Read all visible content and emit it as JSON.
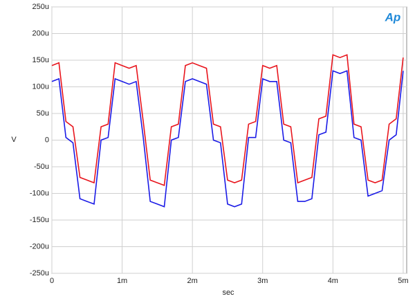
{
  "chart_data": {
    "type": "line",
    "logo": "Ap",
    "xlabel": "sec",
    "ylabel": "V",
    "x": [
      0,
      0.0001,
      0.0002,
      0.0003,
      0.0004,
      0.0005,
      0.0006,
      0.0007,
      0.0008,
      0.0009,
      0.001,
      0.0011,
      0.0012,
      0.0013,
      0.0014,
      0.0015,
      0.0016,
      0.0017,
      0.0018,
      0.0019,
      0.002,
      0.0021,
      0.0022,
      0.0023,
      0.0024,
      0.0025,
      0.0026,
      0.0027,
      0.0028,
      0.0029,
      0.003,
      0.0031,
      0.0032,
      0.0033,
      0.0034,
      0.0035,
      0.0036,
      0.0037,
      0.0038,
      0.0039,
      0.004,
      0.0041,
      0.0042,
      0.0043,
      0.0044,
      0.0045,
      0.0046,
      0.0047,
      0.0048,
      0.0049,
      0.005
    ],
    "series": [
      {
        "color": "#e8141c",
        "values": [
          0.00014,
          0.000145,
          3.5e-05,
          2.5e-05,
          -7e-05,
          -7.5e-05,
          -8e-05,
          2.5e-05,
          3e-05,
          0.000145,
          0.00014,
          0.000135,
          0.00014,
          3.5e-05,
          -7.5e-05,
          -8e-05,
          -8.5e-05,
          2.5e-05,
          3e-05,
          0.00014,
          0.000145,
          0.00014,
          0.000135,
          3e-05,
          2.5e-05,
          -7.5e-05,
          -8e-05,
          -7.5e-05,
          3e-05,
          3.5e-05,
          0.00014,
          0.000135,
          0.00014,
          3e-05,
          2.5e-05,
          -8e-05,
          -7.5e-05,
          -7e-05,
          4e-05,
          4.5e-05,
          0.00016,
          0.000155,
          0.00016,
          3e-05,
          2.5e-05,
          -7.5e-05,
          -8e-05,
          -7.5e-05,
          3e-05,
          4e-05,
          0.000155
        ]
      },
      {
        "color": "#1a1ae6",
        "values": [
          0.00011,
          0.000115,
          5e-06,
          -5e-06,
          -0.00011,
          -0.000115,
          -0.00012,
          0,
          5e-06,
          0.000115,
          0.00011,
          0.000105,
          0.00011,
          5e-06,
          -0.000115,
          -0.00012,
          -0.000125,
          0,
          5e-06,
          0.00011,
          0.000115,
          0.00011,
          0.000105,
          0,
          -5e-06,
          -0.00012,
          -0.000125,
          -0.00012,
          5e-06,
          5e-06,
          0.000115,
          0.00011,
          0.00011,
          0,
          -5e-06,
          -0.000115,
          -0.000115,
          -0.00011,
          1e-05,
          1.5e-05,
          0.00013,
          0.000125,
          0.00013,
          5e-06,
          0,
          -0.000105,
          -0.0001,
          -9.5e-05,
          0,
          1e-05,
          0.00013
        ]
      }
    ],
    "xlim": [
      0,
      0.00505
    ],
    "xticks": [
      0,
      {
        "value": 0.001,
        "label": "1m"
      },
      {
        "value": 0.002,
        "label": "2m"
      },
      {
        "value": 0.003,
        "label": "3m"
      },
      {
        "value": 0.004,
        "label": "4m"
      },
      {
        "value": 0.005,
        "label": "5m"
      }
    ],
    "ylim": [
      -0.00025,
      0.00025
    ],
    "yticks": [
      {
        "value": -0.00025,
        "label": "-250u"
      },
      {
        "value": -0.0002,
        "label": "-200u"
      },
      {
        "value": -0.00015,
        "label": "-150u"
      },
      {
        "value": -0.0001,
        "label": "-100u"
      },
      {
        "value": -5e-05,
        "label": "-50u"
      },
      0,
      {
        "value": 5e-05,
        "label": "50u"
      },
      {
        "value": 0.0001,
        "label": "100u"
      },
      {
        "value": 0.00015,
        "label": "150u"
      },
      {
        "value": 0.0002,
        "label": "200u"
      },
      {
        "value": 0.00025,
        "label": "250u"
      }
    ],
    "grid": true
  }
}
